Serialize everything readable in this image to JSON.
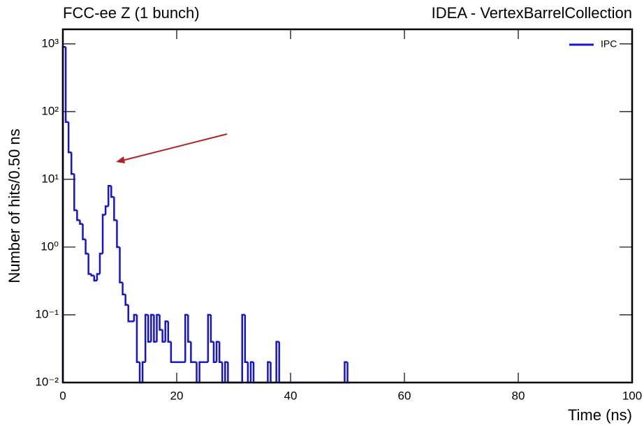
{
  "chart_data": {
    "type": "histogram",
    "title": "FCC-ee Z (1 bunch)",
    "subtitle": "IDEA - VertexBarrelCollection",
    "xlabel": "Time (ns)",
    "ylabel": "Number of hits/0.50 ns",
    "log_y": true,
    "legend": "upper right",
    "xlim": [
      0,
      100
    ],
    "ylim": [
      0.01,
      1640
    ],
    "xticks": [
      0,
      20,
      40,
      60,
      80,
      100
    ],
    "yticks": [
      {
        "value": 0.01,
        "label": "10⁻²"
      },
      {
        "value": 0.1,
        "label": "10⁻¹"
      },
      {
        "value": 1,
        "label": "10⁰"
      },
      {
        "value": 10,
        "label": "10¹"
      },
      {
        "value": 100,
        "label": "10²"
      },
      {
        "value": 1000,
        "label": "10³"
      }
    ],
    "bins": [
      0,
      0.5,
      1,
      1.5,
      2,
      2.5,
      3,
      3.5,
      4,
      4.5,
      5,
      5.5,
      6,
      6.5,
      7,
      7.5,
      8,
      8.5,
      9,
      9.5,
      10,
      10.5,
      11,
      11.5,
      12,
      12.5,
      13,
      13.5,
      14,
      14.5,
      15,
      15.5,
      16,
      16.5,
      17,
      17.5,
      18,
      18.5,
      19,
      19.5,
      20,
      20.5,
      21,
      21.5,
      22,
      22.5,
      23,
      23.5,
      24,
      24.5,
      25,
      25.5,
      26,
      26.5,
      27,
      27.5,
      28,
      28.5,
      29,
      29.5,
      30,
      30.5,
      31,
      31.5,
      32,
      32.5,
      33,
      33.5,
      34,
      34.5,
      35,
      35.5,
      36,
      36.5,
      37,
      37.5,
      38,
      38.5,
      39,
      39.5,
      40,
      40.5,
      41,
      41.5,
      42,
      42.5,
      43,
      43.5,
      44,
      44.5,
      45,
      45.5,
      46,
      46.5,
      47,
      47.5,
      48,
      48.5,
      49,
      49.5,
      50,
      50.5
    ],
    "series": [
      {
        "name": "IPC",
        "color": "#1414d2",
        "values": [
          900,
          70,
          25,
          12,
          3.5,
          2.5,
          2.2,
          1.3,
          0.8,
          0.4,
          0.38,
          0.32,
          0.4,
          0.8,
          3,
          4,
          8,
          5.5,
          2.5,
          1,
          0.3,
          0.2,
          0.14,
          0.08,
          0.08,
          0.1,
          0.02,
          0,
          0.02,
          0.1,
          0.04,
          0.1,
          0.04,
          0.1,
          0.06,
          0.04,
          0.08,
          0.04,
          0.02,
          0.02,
          0.02,
          0.02,
          0.02,
          0.1,
          0.04,
          0.02,
          0.02,
          0,
          0.02,
          0.02,
          0.02,
          0.1,
          0.04,
          0.02,
          0.04,
          0.02,
          0,
          0.02,
          0,
          0,
          0,
          0,
          0,
          0.1,
          0.02,
          0,
          0.02,
          0,
          0,
          0,
          0,
          0,
          0.02,
          0,
          0,
          0.04,
          0,
          0,
          0,
          0,
          0,
          0,
          0,
          0,
          0,
          0,
          0,
          0,
          0,
          0,
          0,
          0,
          0,
          0,
          0,
          0,
          0,
          0,
          0,
          0.02,
          0
        ]
      }
    ]
  }
}
